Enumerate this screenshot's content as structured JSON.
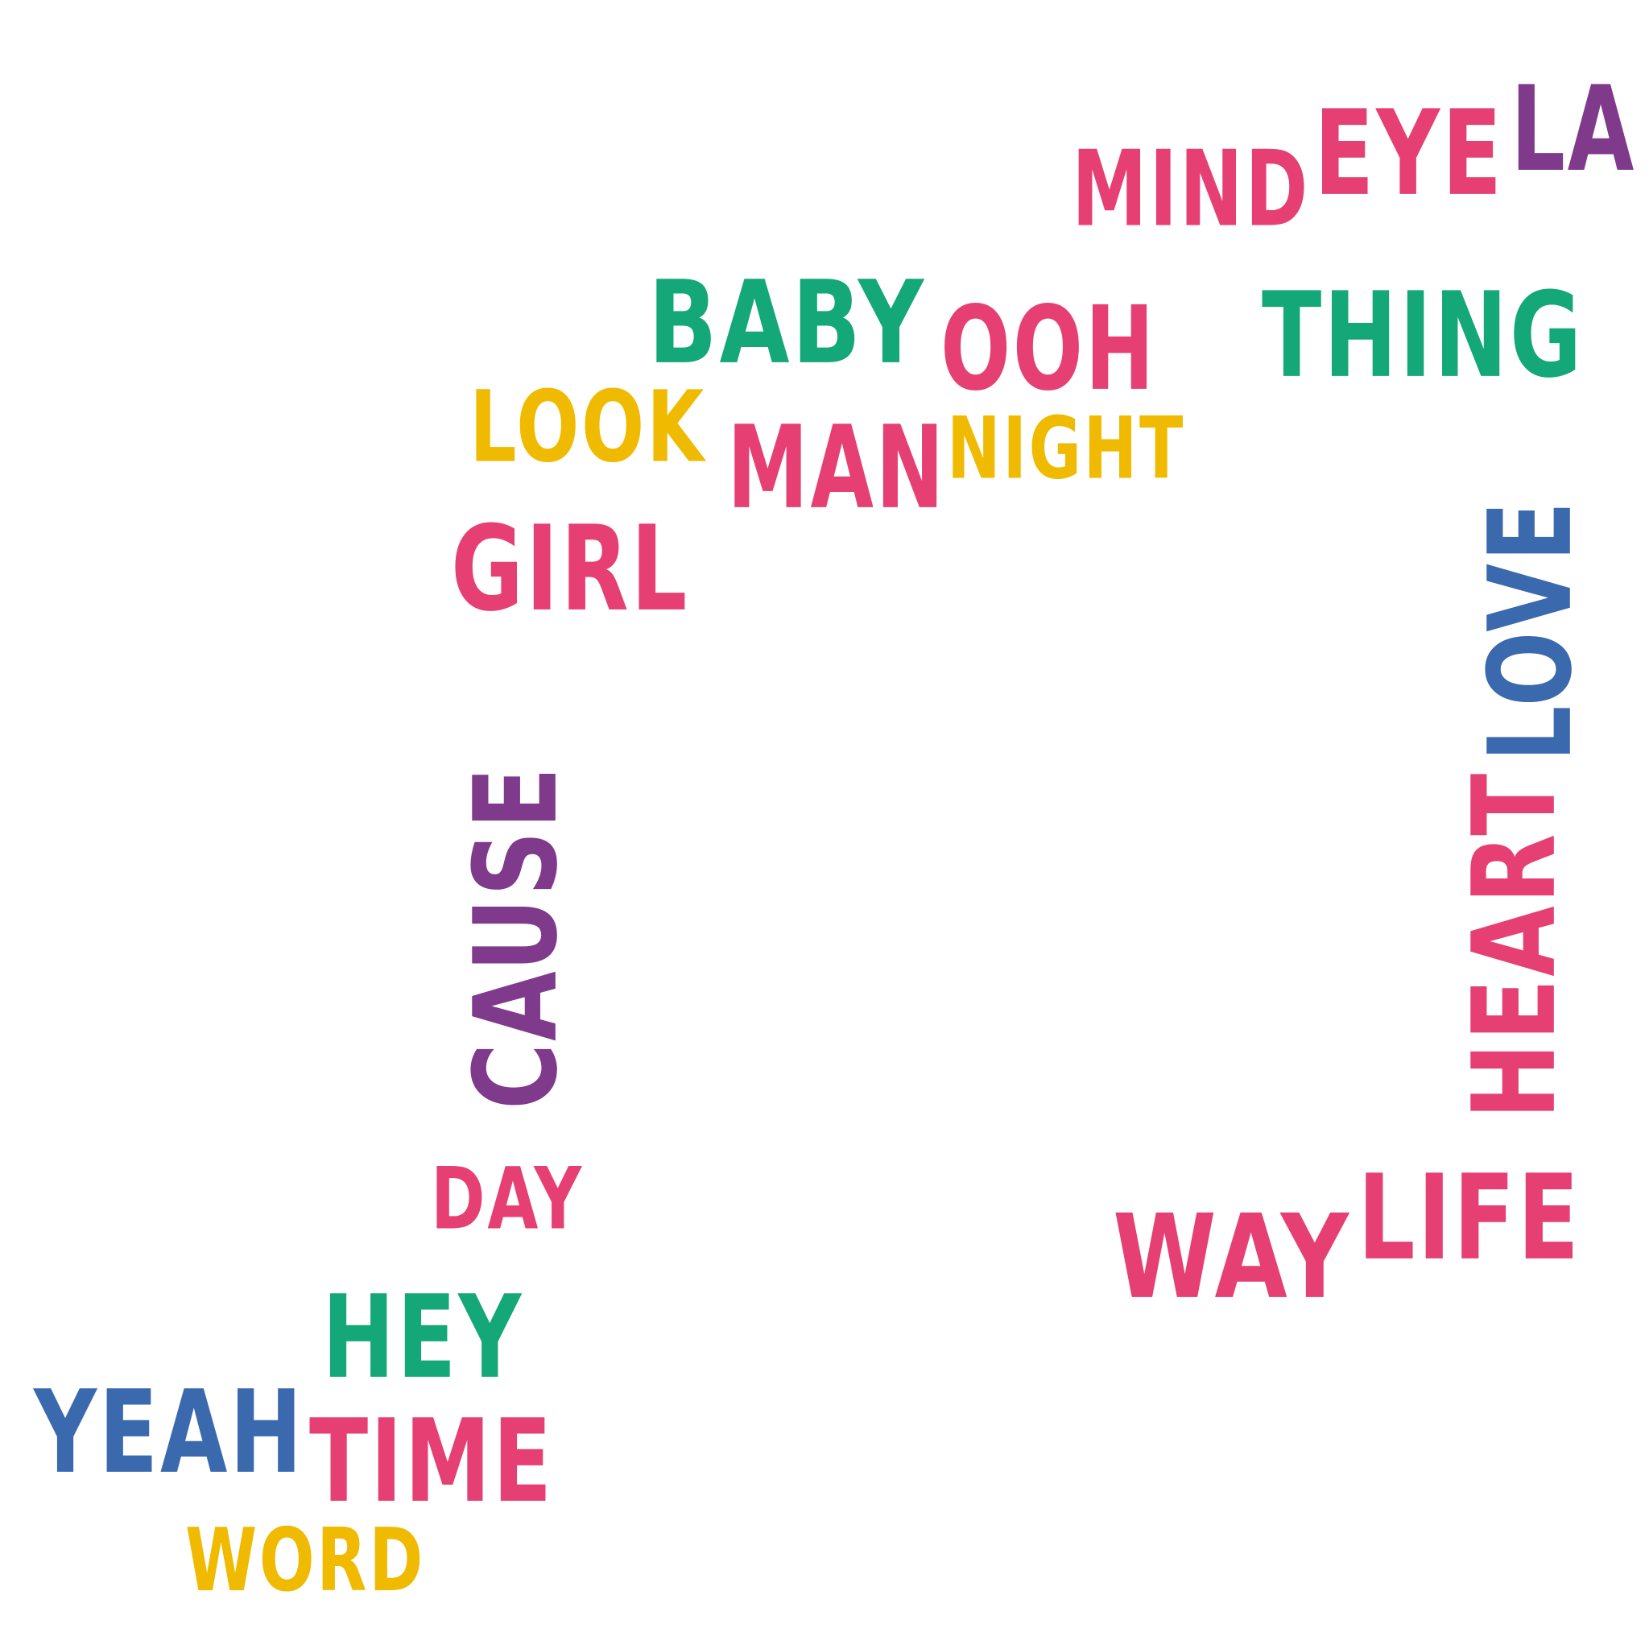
{
  "colors": {
    "pink": "#e63f74",
    "green": "#14a777",
    "yellow": "#f0ba00",
    "blue": "#3b69ad",
    "purple": "#7f3a8c",
    "background": "#ffffff"
  },
  "words": {
    "mind": "MIND",
    "eye": "EYE",
    "la": "LA",
    "baby": "BABY",
    "ooh": "OOH",
    "thing": "THING",
    "look": "LOOK",
    "man": "MAN",
    "night": "NIGHT",
    "girl": "GIRL",
    "cause": "CAUSE",
    "heart": "HEART",
    "love": "LOVE",
    "day": "DAY",
    "way": "WAY",
    "life": "LIFE",
    "hey": "HEY",
    "yeah": "YEAH",
    "time": "TIME",
    "word": "WORD"
  }
}
